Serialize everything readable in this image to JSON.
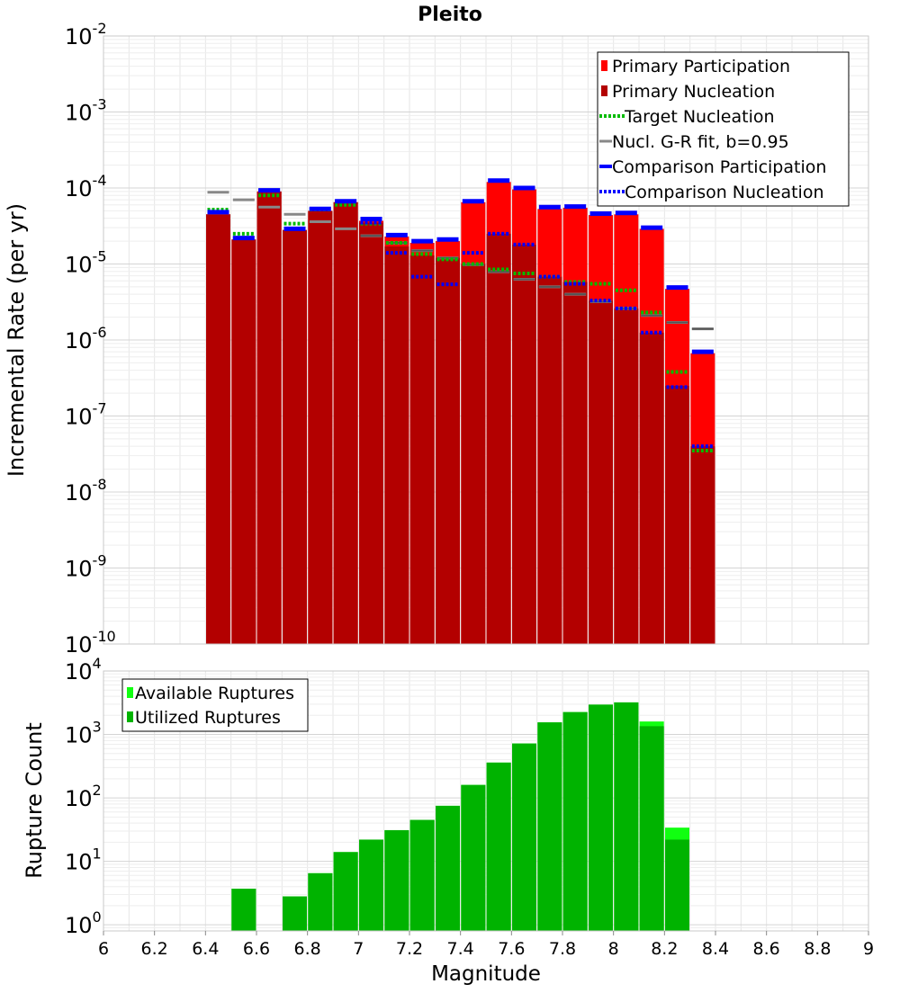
{
  "chart_data": [
    {
      "type": "bar",
      "title": "Pleito",
      "ylabel": "Incremental Rate (per yr)",
      "xlabel": "",
      "xlim": [
        6,
        9
      ],
      "ylim": [
        1e-10,
        0.01
      ],
      "yscale": "log",
      "ytick_labels": [
        {
          "base": "10",
          "exp": "-10"
        },
        {
          "base": "10",
          "exp": "-9"
        },
        {
          "base": "10",
          "exp": "-8"
        },
        {
          "base": "10",
          "exp": "-7"
        },
        {
          "base": "10",
          "exp": "-6"
        },
        {
          "base": "10",
          "exp": "-5"
        },
        {
          "base": "10",
          "exp": "-4"
        },
        {
          "base": "10",
          "exp": "-3"
        },
        {
          "base": "10",
          "exp": "-2"
        }
      ],
      "grid": true,
      "legend_placement": "top-right",
      "x": [
        6.45,
        6.55,
        6.65,
        6.75,
        6.85,
        6.95,
        7.05,
        7.15,
        7.25,
        7.35,
        7.45,
        7.55,
        7.65,
        7.75,
        7.85,
        7.95,
        8.05,
        8.15,
        8.25,
        8.35
      ],
      "series": [
        {
          "name": "Primary Participation",
          "style": "bar",
          "color": "#ff0000",
          "values": [
            4.5e-05,
            2.1e-05,
            9e-05,
            2.8e-05,
            5e-05,
            6.5e-05,
            3.7e-05,
            2.3e-05,
            1.9e-05,
            2e-05,
            6.5e-05,
            0.00012,
            9.6e-05,
            5.3e-05,
            5.5e-05,
            4.4e-05,
            4.5e-05,
            2.9e-05,
            4.7e-06,
            6.7e-07
          ]
        },
        {
          "name": "Primary Nucleation",
          "style": "bar",
          "color": "#b30000",
          "values": [
            4.5e-05,
            2.1e-05,
            9e-05,
            2.8e-05,
            5e-05,
            6.5e-05,
            3.5e-05,
            1.7e-05,
            1.3e-05,
            1.2e-05,
            1e-05,
            2.5e-05,
            1.8e-05,
            6.8e-06,
            5.8e-06,
            3.3e-06,
            2.6e-06,
            1.25e-06,
            2.5e-07,
            4e-08
          ]
        },
        {
          "name": "Target Nucleation",
          "style": "dotted",
          "color": "#00bb00",
          "values": [
            5.2e-05,
            2.5e-05,
            8e-05,
            3.4e-05,
            5.2e-05,
            6e-05,
            3.4e-05,
            1.9e-05,
            1.35e-05,
            1.15e-05,
            1e-05,
            8.5e-06,
            7.5e-06,
            6.8e-06,
            5.8e-06,
            5.5e-06,
            4.5e-06,
            2.3e-06,
            3.8e-07,
            3.5e-08
          ]
        },
        {
          "name": "Nucl. G-R fit, b=0.95",
          "style": "solid",
          "color": "#888888",
          "values": [
            8.8e-05,
            7e-05,
            5.6e-05,
            4.5e-05,
            3.6e-05,
            2.9e-05,
            2.35e-05,
            1.9e-05,
            1.5e-05,
            1.2e-05,
            9.8e-06,
            7.9e-06,
            6.3e-06,
            5e-06,
            4e-06,
            3.2e-06,
            2.6e-06,
            2.1e-06,
            1.7e-06,
            1.4e-06
          ]
        },
        {
          "name": "Comparison Participation",
          "style": "thick",
          "color": "#0000ff",
          "values": [
            4.8e-05,
            2.2e-05,
            9.3e-05,
            2.9e-05,
            5.3e-05,
            6.7e-05,
            3.9e-05,
            2.4e-05,
            2e-05,
            2.1e-05,
            6.7e-05,
            0.000125,
            0.0001,
            5.6e-05,
            5.7e-05,
            4.6e-05,
            4.7e-05,
            3e-05,
            4.9e-06,
            7e-07
          ]
        },
        {
          "name": "Comparison Nucleation",
          "style": "dotted",
          "color": "#0000ff",
          "values": [
            4.8e-05,
            2.2e-05,
            9.3e-05,
            2.9e-05,
            5.3e-05,
            6.7e-05,
            3.5e-05,
            1.4e-05,
            6.8e-06,
            5.4e-06,
            1.4e-05,
            2.5e-05,
            1.8e-05,
            6.8e-06,
            5.5e-06,
            3.3e-06,
            2.6e-06,
            1.25e-06,
            2.4e-07,
            4e-08
          ]
        }
      ]
    },
    {
      "type": "bar",
      "title": "",
      "xlabel": "Magnitude",
      "ylabel": "Rupture Count",
      "xlim": [
        6,
        9
      ],
      "ylim": [
        0.8,
        10000
      ],
      "yscale": "log",
      "xtick_labels": [
        "6",
        "6.2",
        "6.4",
        "6.6",
        "6.8",
        "7",
        "7.2",
        "7.4",
        "7.6",
        "7.8",
        "8",
        "8.2",
        "8.4",
        "8.6",
        "8.8",
        "9"
      ],
      "ytick_labels": [
        {
          "base": "10",
          "exp": "0"
        },
        {
          "base": "10",
          "exp": "1"
        },
        {
          "base": "10",
          "exp": "2"
        },
        {
          "base": "10",
          "exp": "3"
        },
        {
          "base": "10",
          "exp": "4"
        }
      ],
      "grid": true,
      "legend_placement": "top-left",
      "x": [
        6.55,
        6.75,
        6.85,
        6.95,
        7.05,
        7.15,
        7.25,
        7.35,
        7.45,
        7.55,
        7.65,
        7.75,
        7.85,
        7.95,
        8.05,
        8.15,
        8.25
      ],
      "series": [
        {
          "name": "Available Ruptures",
          "color": "#11ff11",
          "values": [
            3.7,
            2.8,
            6.5,
            14,
            22,
            31,
            45,
            75,
            160,
            360,
            720,
            1550,
            2250,
            2950,
            3200,
            1600,
            34
          ]
        },
        {
          "name": "Utilized Ruptures",
          "color": "#00b300",
          "values": [
            3.7,
            2.8,
            6.5,
            14,
            22,
            31,
            45,
            75,
            160,
            360,
            720,
            1550,
            2250,
            2950,
            3200,
            1350,
            22
          ]
        }
      ]
    }
  ]
}
